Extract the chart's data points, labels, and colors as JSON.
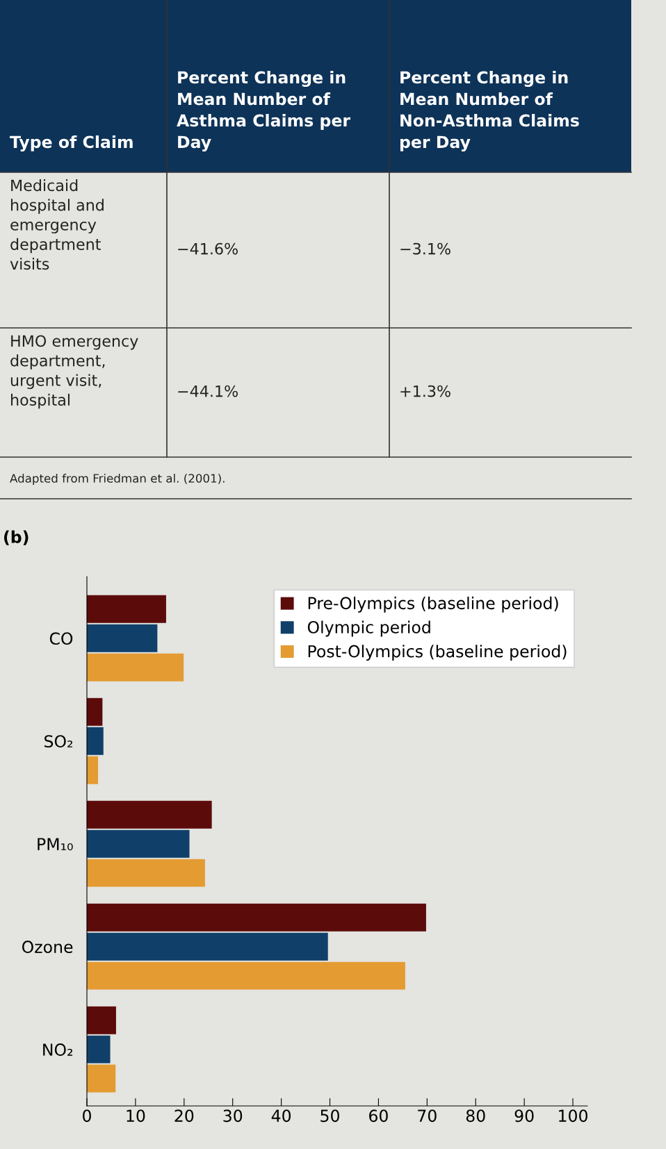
{
  "chart_data": [
    {
      "type": "other",
      "annotations": [
        "Type of Claim",
        "Percent Change in Mean Number of Asthma Claims per Day",
        "Percent Change in Mean Number of Non-Asthma Claims per Day",
        "Medicaid hospital and emergency department visits",
        "−41.6%",
        "−3.1%",
        "HMO emergency department, urgent visit, hospital",
        "−44.1%",
        "+1.3%",
        "Adapted from Friedman et al. (2001)."
      ]
    },
    {
      "type": "bar",
      "orientation": "horizontal",
      "title": "(b)",
      "categories": [
        "CO",
        "SO₂",
        "PM₁₀",
        "Ozone",
        "NO₂"
      ],
      "series": [
        {
          "name": "Pre-Olympics (baseline period)",
          "color": "#5c0b0b",
          "values": [
            16.3,
            3.2,
            25.7,
            69.8,
            6.0
          ]
        },
        {
          "name": "Olympic period",
          "color": "#10406a",
          "values": [
            14.5,
            3.4,
            21.1,
            49.6,
            4.8
          ]
        },
        {
          "name": "Post-Olympics (baseline period)",
          "color": "#e39b32",
          "values": [
            19.9,
            2.3,
            24.3,
            65.5,
            5.9
          ]
        }
      ],
      "xlim": [
        0,
        103
      ],
      "xticks": [
        0,
        10,
        20,
        30,
        40,
        50,
        60,
        70,
        80,
        90,
        100
      ],
      "grid": false,
      "legend": "top right"
    }
  ]
}
